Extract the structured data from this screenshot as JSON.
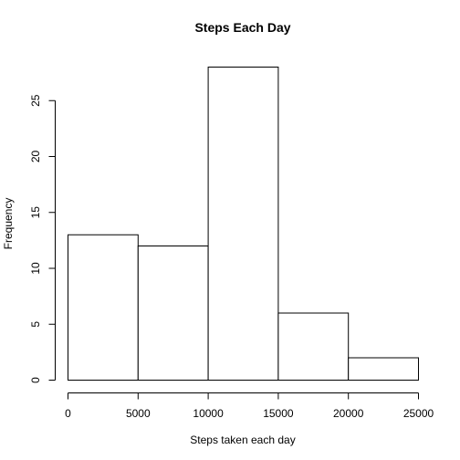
{
  "chart_data": {
    "type": "bar",
    "title": "Steps Each Day",
    "xlabel": "Steps taken each day",
    "ylabel": "Frequency",
    "bins": [
      {
        "from": 0,
        "to": 5000,
        "count": 13
      },
      {
        "from": 5000,
        "to": 10000,
        "count": 12
      },
      {
        "from": 10000,
        "to": 15000,
        "count": 28
      },
      {
        "from": 15000,
        "to": 20000,
        "count": 6
      },
      {
        "from": 20000,
        "to": 25000,
        "count": 2
      }
    ],
    "xlim": [
      0,
      25000
    ],
    "ylim": [
      0,
      28
    ],
    "x_ticks": [
      0,
      5000,
      10000,
      15000,
      20000,
      25000
    ],
    "y_ticks": [
      0,
      5,
      10,
      15,
      20,
      25
    ],
    "grid": false,
    "legend": "none"
  }
}
